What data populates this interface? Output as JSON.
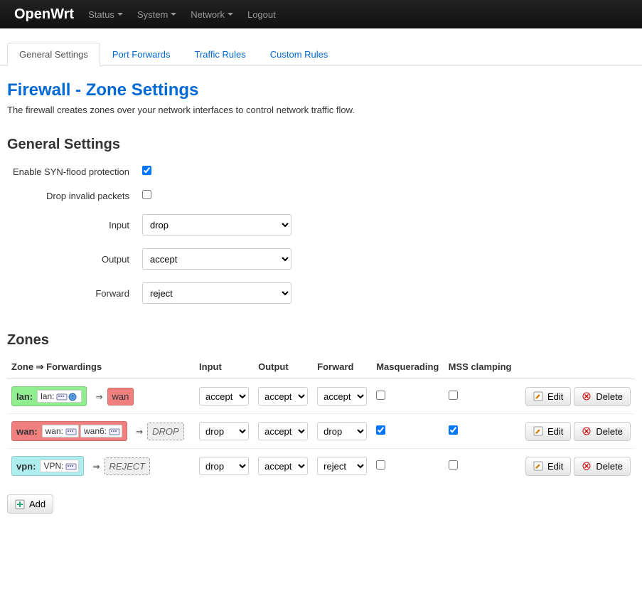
{
  "navbar": {
    "brand": "OpenWrt",
    "items": [
      "Status",
      "System",
      "Network",
      "Logout"
    ],
    "dropdown_flags": [
      true,
      true,
      true,
      false
    ]
  },
  "tabs": {
    "items": [
      "General Settings",
      "Port Forwards",
      "Traffic Rules",
      "Custom Rules"
    ],
    "active_index": 0
  },
  "page": {
    "title": "Firewall - Zone Settings",
    "description": "The firewall creates zones over your network interfaces to control network traffic flow."
  },
  "general": {
    "heading": "General Settings",
    "syn_label": "Enable SYN-flood protection",
    "syn_checked": true,
    "drop_invalid_label": "Drop invalid packets",
    "drop_invalid_checked": false,
    "input_label": "Input",
    "input_value": "drop",
    "output_label": "Output",
    "output_value": "accept",
    "forward_label": "Forward",
    "forward_value": "reject",
    "select_options": [
      "accept",
      "drop",
      "reject"
    ]
  },
  "zones": {
    "heading": "Zones",
    "columns": [
      "Zone ⇒ Forwardings",
      "Input",
      "Output",
      "Forward",
      "Masquerading",
      "MSS clamping",
      ""
    ],
    "rows": [
      {
        "zone_name": "lan",
        "zone_color": "#90ee90",
        "ifaces": [
          {
            "name": "lan",
            "icons": [
              "nic",
              "globe"
            ]
          }
        ],
        "forwards": [
          {
            "label": "wan",
            "color": "#f08080",
            "style": "solid"
          }
        ],
        "input": "accept",
        "output": "accept",
        "forward": "accept",
        "masq": false,
        "mss": false
      },
      {
        "zone_name": "wan",
        "zone_color": "#f08080",
        "ifaces": [
          {
            "name": "wan",
            "icons": [
              "nic"
            ]
          },
          {
            "name": "wan6",
            "icons": [
              "nic"
            ]
          }
        ],
        "forwards": [
          {
            "label": "DROP",
            "color": "#eeeeee",
            "style": "dashed"
          }
        ],
        "input": "drop",
        "output": "accept",
        "forward": "drop",
        "masq": true,
        "mss": true
      },
      {
        "zone_name": "vpn",
        "zone_color": "#afeeee",
        "ifaces": [
          {
            "name": "VPN",
            "icons": [
              "nic"
            ]
          }
        ],
        "forwards": [
          {
            "label": "REJECT",
            "color": "#eeeeee",
            "style": "dashed"
          }
        ],
        "input": "drop",
        "output": "accept",
        "forward": "reject",
        "masq": false,
        "mss": false
      }
    ],
    "edit_label": "Edit",
    "delete_label": "Delete",
    "add_label": "Add",
    "select_options": [
      "accept",
      "drop",
      "reject"
    ]
  }
}
